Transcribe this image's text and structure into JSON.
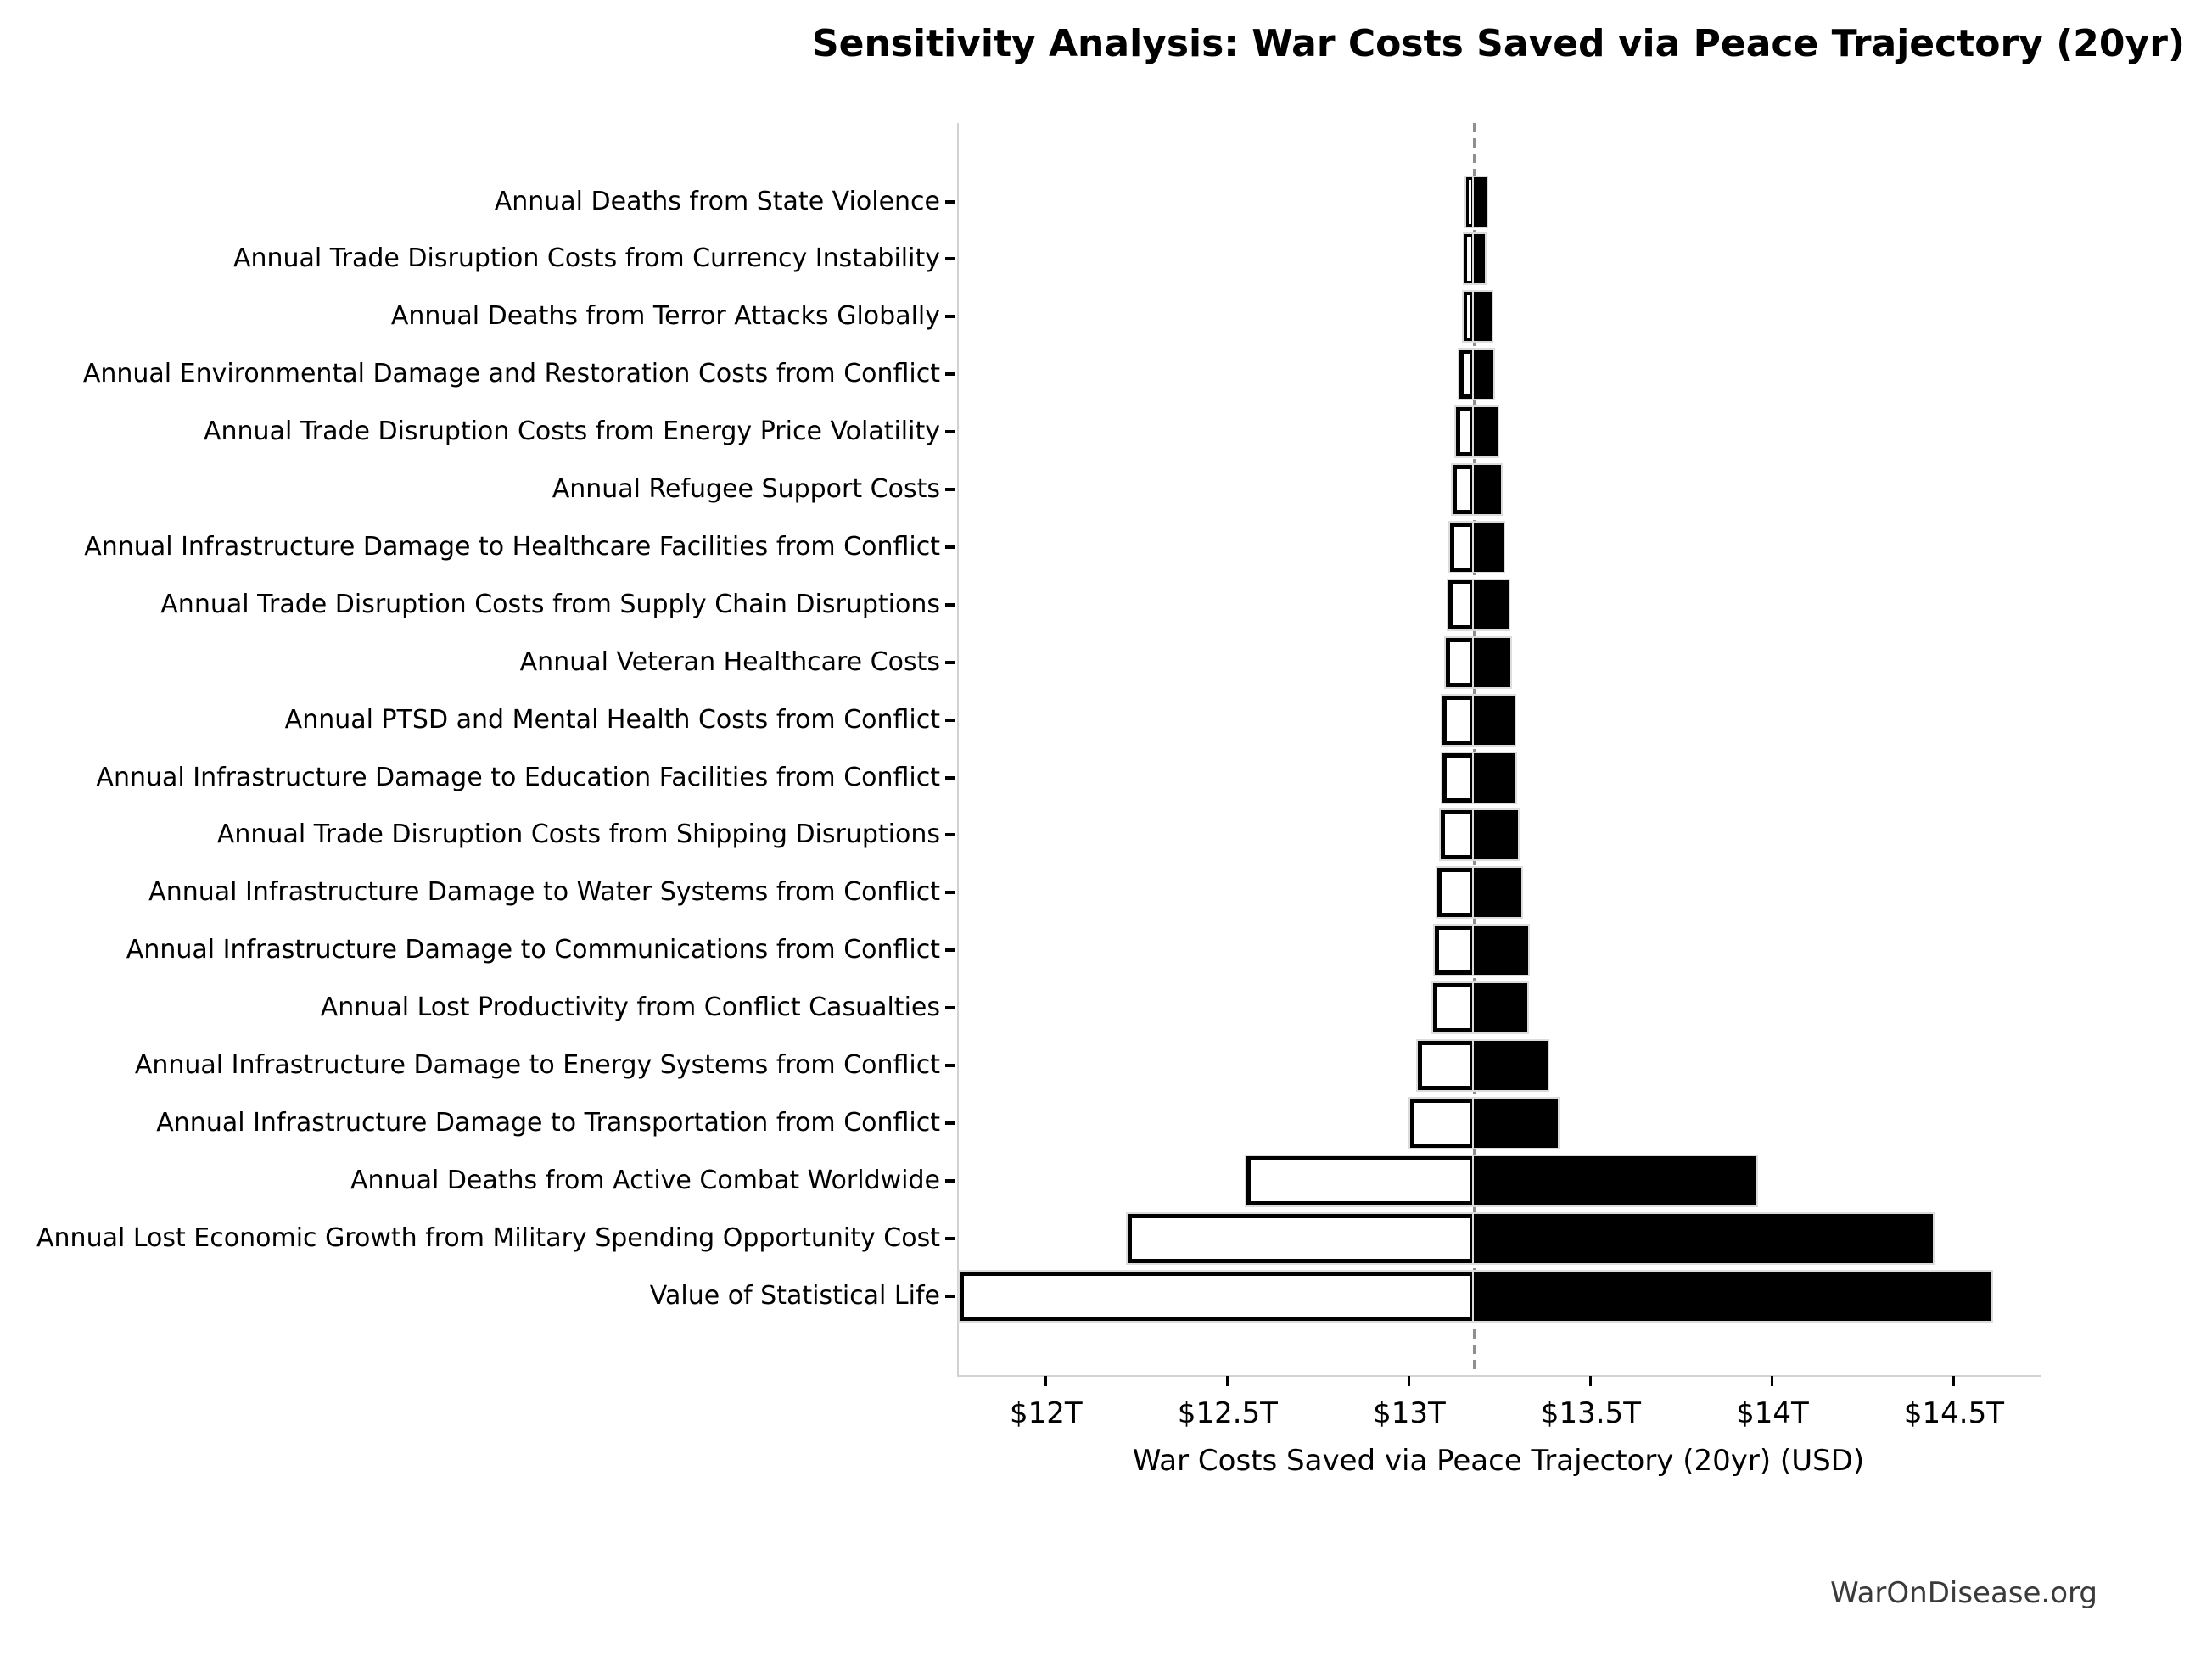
{
  "title": "Sensitivity Analysis: War Costs Saved via Peace Trajectory (20yr)",
  "footer": "WarOnDisease.org",
  "chart_data": {
    "type": "bar",
    "subtype": "tornado-sensitivity",
    "orientation": "horizontal",
    "title": "Sensitivity Analysis: War Costs Saved via Peace Trajectory (20yr)",
    "xlabel": "War Costs Saved via Peace Trajectory (20yr) (USD)",
    "units": "trillions USD",
    "baseline_value": 13.174,
    "xlim": [
      11.755,
      14.736
    ],
    "grid": false,
    "legend": "none",
    "bar_colors": {
      "low_side": "#ffffff",
      "high_side": "#000000",
      "edge": "#000000"
    },
    "x_ticks": [
      {
        "value": 12.0,
        "label": "$12T"
      },
      {
        "value": 12.5,
        "label": "$12.5T"
      },
      {
        "value": 13.0,
        "label": "$13T"
      },
      {
        "value": 13.5,
        "label": "$13.5T"
      },
      {
        "value": 14.0,
        "label": "$14T"
      },
      {
        "value": 14.5,
        "label": "$14.5T"
      }
    ],
    "parameters": [
      {
        "label": "Annual Deaths from State Violence",
        "low": 13.152,
        "high": 13.208
      },
      {
        "label": "Annual Trade Disruption Costs from Currency Instability",
        "low": 13.147,
        "high": 13.204
      },
      {
        "label": "Annual Deaths from Terror Attacks Globally",
        "low": 13.144,
        "high": 13.221
      },
      {
        "label": "Annual Environmental Damage and Restoration Costs from Conflict",
        "low": 13.134,
        "high": 13.227
      },
      {
        "label": "Annual Trade Disruption Costs from Energy Price Volatility",
        "low": 13.124,
        "high": 13.238
      },
      {
        "label": "Annual Refugee Support Costs",
        "low": 13.114,
        "high": 13.248
      },
      {
        "label": "Annual Infrastructure Damage to Healthcare Facilities from Conflict",
        "low": 13.108,
        "high": 13.255
      },
      {
        "label": "Annual Trade Disruption Costs from Supply Chain Disruptions",
        "low": 13.103,
        "high": 13.268
      },
      {
        "label": "Annual Veteran Healthcare Costs",
        "low": 13.096,
        "high": 13.274
      },
      {
        "label": "Annual PTSD and Mental Health Costs from Conflict",
        "low": 13.086,
        "high": 13.286
      },
      {
        "label": "Annual Infrastructure Damage to Education Facilities from Conflict",
        "low": 13.086,
        "high": 13.288
      },
      {
        "label": "Annual Trade Disruption Costs from Shipping Disruptions",
        "low": 13.082,
        "high": 13.294
      },
      {
        "label": "Annual Infrastructure Damage to Water Systems from Conflict",
        "low": 13.072,
        "high": 13.303
      },
      {
        "label": "Annual Infrastructure Damage to Communications from Conflict",
        "low": 13.066,
        "high": 13.322
      },
      {
        "label": "Annual Lost Productivity from Conflict Casualties",
        "low": 13.062,
        "high": 13.321
      },
      {
        "label": "Annual Infrastructure Damage to Energy Systems from Conflict",
        "low": 13.02,
        "high": 13.376
      },
      {
        "label": "Annual Infrastructure Damage to Transportation from Conflict",
        "low": 12.997,
        "high": 13.404
      },
      {
        "label": "Annual Deaths from Active Combat Worldwide",
        "low": 12.546,
        "high": 13.952
      },
      {
        "label": "Annual Lost Economic Growth from Military Spending Opportunity Cost",
        "low": 12.221,
        "high": 14.438
      },
      {
        "label": "Value of Statistical Life",
        "low": 11.758,
        "high": 14.599
      }
    ]
  }
}
